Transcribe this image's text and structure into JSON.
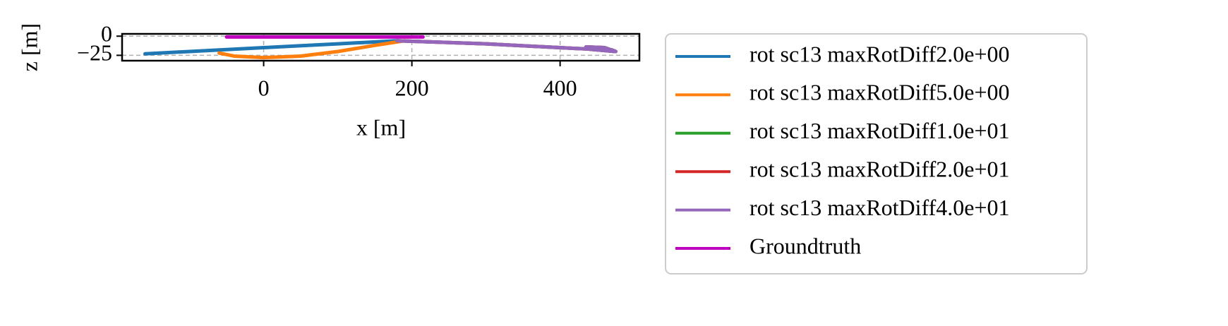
{
  "chart_data": {
    "type": "line",
    "x_label": "x [m]",
    "y_label": "z [m]",
    "xlim": [
      -191,
      507
    ],
    "ylim": [
      -32,
      3
    ],
    "xticks": [
      0,
      200,
      400
    ],
    "yticks": [
      {
        "value": -25,
        "label": "−25"
      },
      0
    ],
    "grid": true,
    "legend": "outside right",
    "series": [
      {
        "name": "rot sc13 maxRotDiff2.0e+00",
        "color": "#1f77b4",
        "x": [
          -160,
          -100,
          0,
          100,
          180
        ],
        "values": [
          -23,
          -20,
          -15,
          -10,
          -6
        ]
      },
      {
        "name": "rot sc13 maxRotDiff5.0e+00",
        "color": "#ff7f0e",
        "x": [
          -60,
          -40,
          0,
          50,
          100,
          150,
          190
        ],
        "values": [
          -22,
          -26,
          -28,
          -26,
          -20,
          -12,
          -6
        ]
      },
      {
        "name": "rot sc13 maxRotDiff1.0e+01",
        "color": "#2ca02c",
        "x": [
          180,
          300,
          420,
          470,
          475,
          440,
          435,
          460,
          475
        ],
        "values": [
          -6,
          -10,
          -16,
          -18,
          -20,
          -17,
          -14,
          -15,
          -20
        ]
      },
      {
        "name": "rot sc13 maxRotDiff2.0e+01",
        "color": "#d62728",
        "x": [
          180,
          300,
          420,
          470,
          475,
          440,
          435,
          460,
          475
        ],
        "values": [
          -6,
          -10,
          -16,
          -18,
          -20,
          -17,
          -14,
          -15,
          -20
        ]
      },
      {
        "name": "rot sc13 maxRotDiff4.0e+01",
        "color": "#9467bd",
        "x": [
          180,
          300,
          420,
          470,
          475,
          440,
          435,
          460,
          475
        ],
        "values": [
          -6,
          -10,
          -16,
          -18,
          -20,
          -17,
          -14,
          -15,
          -20
        ]
      },
      {
        "name": "Groundtruth",
        "color": "#bf00bf",
        "x": [
          -50,
          0,
          100,
          215
        ],
        "values": [
          -1,
          -1,
          -1,
          -1
        ]
      }
    ]
  }
}
